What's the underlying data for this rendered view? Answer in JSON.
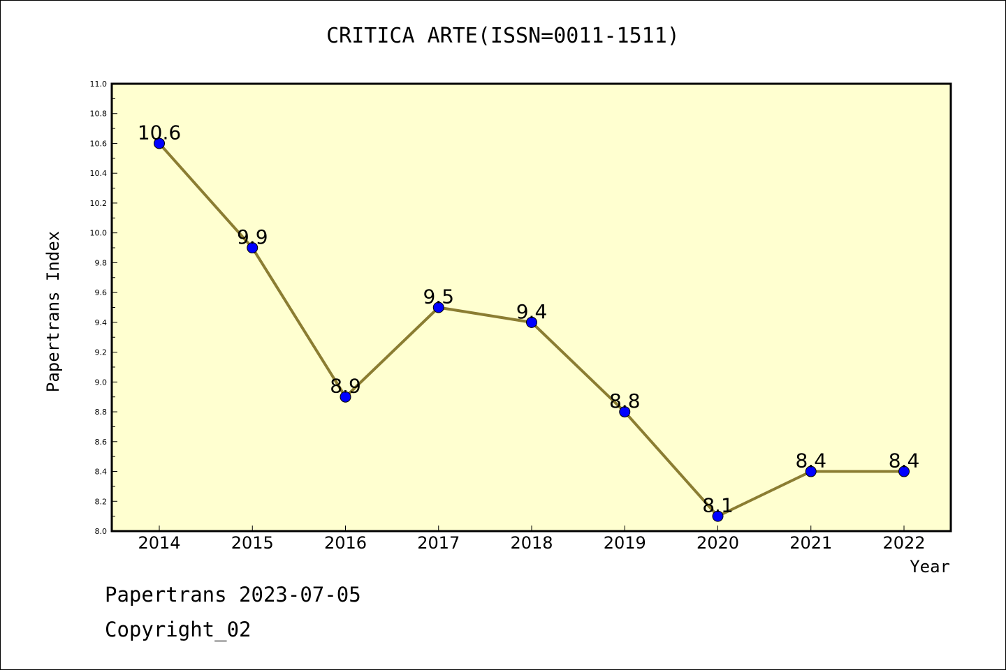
{
  "chart_data": {
    "type": "line",
    "title": "CRITICA ARTE(ISSN=0011-1511)",
    "xlabel": "Year",
    "ylabel": "Papertrans Index",
    "categories": [
      "2014",
      "2015",
      "2016",
      "2017",
      "2018",
      "2019",
      "2020",
      "2021",
      "2022"
    ],
    "series": [
      {
        "values": [
          10.6,
          9.9,
          8.9,
          9.5,
          9.4,
          8.8,
          8.1,
          8.4,
          8.4
        ]
      }
    ],
    "ylim": [
      8.0,
      11.0
    ],
    "yticks": [
      "8.0",
      "8.2",
      "8.4",
      "8.6",
      "8.8",
      "9.0",
      "9.2",
      "9.4",
      "9.6",
      "9.8",
      "10.0",
      "10.2",
      "10.4",
      "10.6",
      "10.8",
      "11.0"
    ],
    "data_labels": [
      "10.6",
      "9.9",
      "8.9",
      "9.5",
      "9.4",
      "8.8",
      "8.1",
      "8.4",
      "8.4"
    ],
    "grid": false,
    "legend": "none",
    "colors": {
      "plot_background": "#ffffd0",
      "line": "#8b7d32",
      "marker": "#0000ff"
    }
  },
  "footer": {
    "line1": "Papertrans 2023-07-05",
    "line2": "Copyright_02"
  }
}
